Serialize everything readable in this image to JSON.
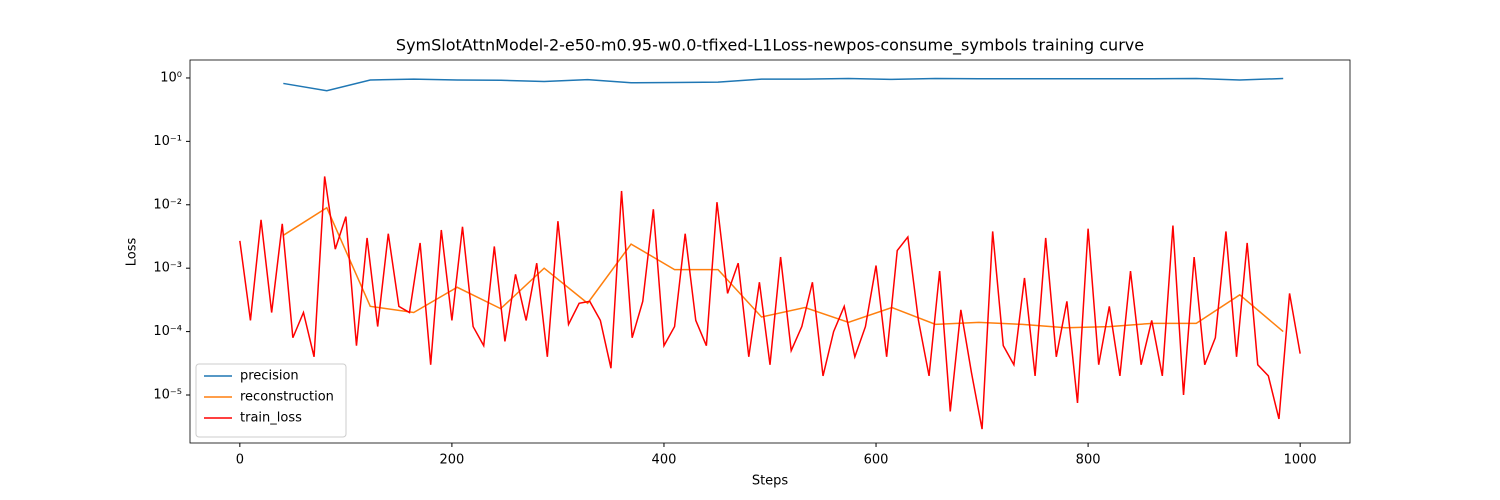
{
  "chart_data": {
    "type": "line",
    "title": "SymSlotAttnModel-2-e50-m0.95-w0.0-tfixed-L1Loss-newpos-consume_symbols training curve",
    "x_label": "Steps",
    "y_label": "Loss",
    "log_scale": true,
    "legend": "lower left",
    "xlim": [
      -47,
      1047
    ],
    "ylim": [
      1.75e-06,
      1.92
    ],
    "xticks": [
      0,
      200,
      400,
      600,
      800,
      1000
    ],
    "yticks": [
      {
        "value": 1e-05,
        "label": "10⁻⁵"
      },
      {
        "value": 0.0001,
        "label": "10⁻⁴"
      },
      {
        "value": 0.001,
        "label": "10⁻³"
      },
      {
        "value": 0.01,
        "label": "10⁻²"
      },
      {
        "value": 0.1,
        "label": "10⁻¹"
      },
      {
        "value": 1,
        "label": "10⁰"
      }
    ],
    "series": [
      {
        "name": "precision",
        "color": "#1f77b4",
        "x": [
          41,
          82,
          123,
          164,
          205,
          246,
          287,
          328,
          369,
          410,
          451,
          492,
          533,
          574,
          615,
          656,
          697,
          738,
          779,
          820,
          861,
          902,
          943,
          984
        ],
        "values": [
          0.82,
          0.63,
          0.93,
          0.96,
          0.93,
          0.92,
          0.88,
          0.94,
          0.84,
          0.85,
          0.86,
          0.96,
          0.96,
          0.98,
          0.95,
          0.98,
          0.97,
          0.97,
          0.97,
          0.97,
          0.97,
          0.98,
          0.93,
          0.98
        ]
      },
      {
        "name": "reconstruction",
        "color": "#ff7f0e",
        "x": [
          41,
          82,
          123,
          164,
          205,
          246,
          287,
          328,
          369,
          410,
          451,
          492,
          533,
          574,
          615,
          656,
          697,
          738,
          779,
          820,
          861,
          902,
          943,
          984
        ],
        "values": [
          0.0033,
          0.009,
          0.00025,
          0.0002,
          0.0005,
          0.00023,
          0.001,
          0.00028,
          0.0024,
          0.00095,
          0.00095,
          0.00017,
          0.00024,
          0.00014,
          0.00024,
          0.00013,
          0.00014,
          0.00013,
          0.000115,
          0.00012,
          0.000135,
          0.000135,
          0.00038,
          0.0001
        ]
      },
      {
        "name": "train_loss",
        "color": "#ff0000",
        "x": [
          0,
          10,
          20,
          30,
          40,
          50,
          60,
          70,
          80,
          90,
          100,
          110,
          120,
          130,
          140,
          150,
          160,
          170,
          180,
          190,
          200,
          210,
          220,
          230,
          240,
          250,
          260,
          270,
          280,
          290,
          300,
          310,
          320,
          330,
          340,
          350,
          360,
          370,
          380,
          390,
          400,
          410,
          420,
          430,
          440,
          450,
          460,
          470,
          480,
          490,
          500,
          510,
          520,
          530,
          540,
          550,
          560,
          570,
          580,
          590,
          600,
          610,
          620,
          630,
          640,
          650,
          660,
          670,
          680,
          690,
          700,
          710,
          720,
          730,
          740,
          750,
          760,
          770,
          780,
          790,
          800,
          810,
          820,
          830,
          840,
          850,
          860,
          870,
          880,
          890,
          900,
          910,
          920,
          930,
          940,
          950,
          960,
          970,
          980,
          990,
          1000
        ],
        "values": [
          0.0027,
          0.00015,
          0.0058,
          0.0002,
          0.005,
          8e-05,
          0.0002,
          4e-05,
          0.028,
          0.002,
          0.0065,
          6e-05,
          0.003,
          0.00012,
          0.0035,
          0.00025,
          0.0002,
          0.0025,
          3e-05,
          0.004,
          0.00015,
          0.0045,
          0.00012,
          6e-05,
          0.0022,
          7e-05,
          0.0008,
          0.00015,
          0.0012,
          4e-05,
          0.0055,
          0.00013,
          0.00028,
          0.0003,
          0.00015,
          2.65e-05,
          0.0165,
          8e-05,
          0.0003,
          0.0085,
          6e-05,
          0.00012,
          0.0035,
          0.00015,
          6e-05,
          0.011,
          0.0004,
          0.0012,
          4e-05,
          0.0006,
          3e-05,
          0.0015,
          5e-05,
          0.00012,
          0.0006,
          2e-05,
          0.0001,
          0.00025,
          4e-05,
          0.00012,
          0.0011,
          4e-05,
          0.0019,
          0.0031,
          0.00015,
          2e-05,
          0.0009,
          5.5e-06,
          0.00022,
          2.25e-05,
          2.9e-06,
          0.0038,
          6e-05,
          3e-05,
          0.0007,
          2e-05,
          0.003,
          4e-05,
          0.0003,
          7.5e-06,
          0.0042,
          3e-05,
          0.00025,
          2e-05,
          0.0009,
          3e-05,
          0.00015,
          2e-05,
          0.0047,
          1e-05,
          0.0015,
          3e-05,
          8e-05,
          0.0038,
          4e-05,
          0.0025,
          3e-05,
          2e-05,
          4.2e-06,
          0.0004,
          4.5e-05
        ]
      }
    ]
  }
}
